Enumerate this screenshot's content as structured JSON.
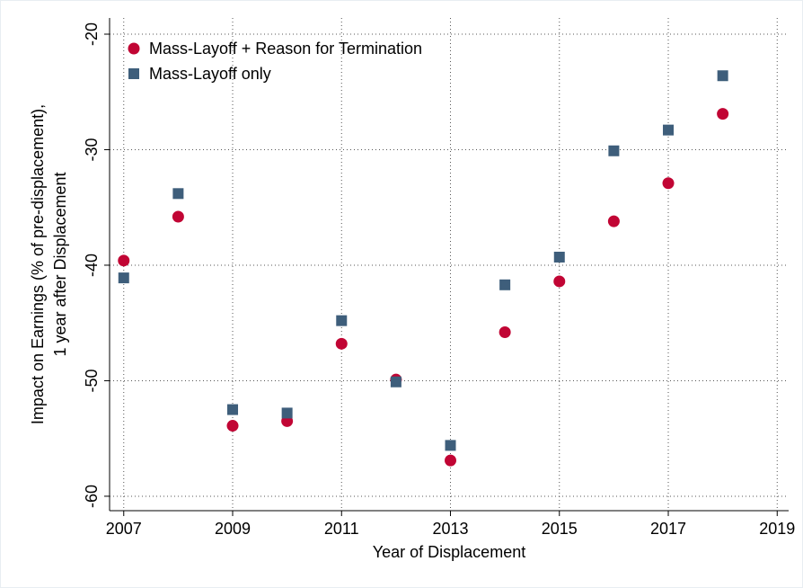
{
  "chart_data": {
    "type": "scatter",
    "xlabel": "Year of Displacement",
    "ylabel_lines": [
      "Impact on Earnings (% of pre-displacement),",
      "1 year after Displacement"
    ],
    "xlim": [
      2006.74,
      2019.21
    ],
    "ylim": [
      -61.25,
      -18.6
    ],
    "xticks": [
      2007,
      2009,
      2011,
      2013,
      2015,
      2017,
      2019
    ],
    "yticks": [
      -20,
      -30,
      -40,
      -50,
      -60
    ],
    "grid": true,
    "legend": "upper left",
    "series": [
      {
        "name": "Mass-Layoff + Reason for Termination",
        "color": "#c10534",
        "marker": "circle",
        "x": [
          2007,
          2008,
          2009,
          2010,
          2011,
          2012,
          2013,
          2014,
          2015,
          2016,
          2017,
          2018
        ],
        "values": [
          -39.6,
          -35.8,
          -53.9,
          -53.5,
          -46.8,
          -49.9,
          -56.9,
          -45.8,
          -41.4,
          -36.2,
          -32.9,
          -26.9
        ]
      },
      {
        "name": "Mass-Layoff only",
        "color": "#3e5e7b",
        "marker": "square",
        "x": [
          2007,
          2008,
          2009,
          2010,
          2011,
          2012,
          2013,
          2014,
          2015,
          2016,
          2017,
          2018
        ],
        "values": [
          -41.1,
          -33.8,
          -52.5,
          -52.8,
          -44.8,
          -50.1,
          -55.6,
          -41.7,
          -39.3,
          -30.1,
          -28.3,
          -23.6
        ]
      }
    ]
  }
}
